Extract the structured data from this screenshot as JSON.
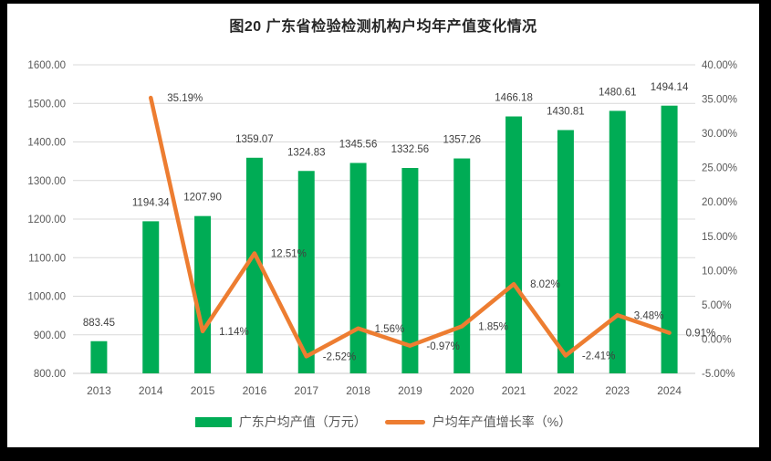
{
  "title": "图20 广东省检验检测机构户均年产值变化情况",
  "chart_data": {
    "type": "bar",
    "subtype": "bar+line combo",
    "categories": [
      "2013",
      "2014",
      "2015",
      "2016",
      "2017",
      "2018",
      "2019",
      "2020",
      "2021",
      "2022",
      "2023",
      "2024"
    ],
    "series": [
      {
        "name": "广东户均产值（万元）",
        "type": "bar",
        "axis": "left",
        "color": "#00AC55",
        "values": [
          883.45,
          1194.34,
          1207.9,
          1359.07,
          1324.83,
          1345.56,
          1332.56,
          1357.26,
          1466.18,
          1430.81,
          1480.61,
          1494.14
        ]
      },
      {
        "name": "户均年产值增长率（%）",
        "type": "line",
        "axis": "right",
        "color": "#ED7D31",
        "values": [
          null,
          35.19,
          1.14,
          12.51,
          -2.52,
          1.56,
          -0.97,
          1.85,
          8.02,
          -2.41,
          3.48,
          0.91
        ]
      }
    ],
    "left_axis": {
      "min": 800,
      "max": 1600,
      "step": 100,
      "tick_format": "two-decimals"
    },
    "right_axis": {
      "min": -5,
      "max": 40,
      "step": 5,
      "tick_format": "two-decimals-percent"
    },
    "grid": true,
    "legend_position": "bottom",
    "data_labels": true,
    "style": {
      "grid_color": "#D9D9D9",
      "axis_line_color": "#C9C9C9",
      "tick_label_color": "#595959",
      "data_label_color": "#404040",
      "frame_background": "#000000",
      "chart_background": "#ffffff"
    }
  }
}
